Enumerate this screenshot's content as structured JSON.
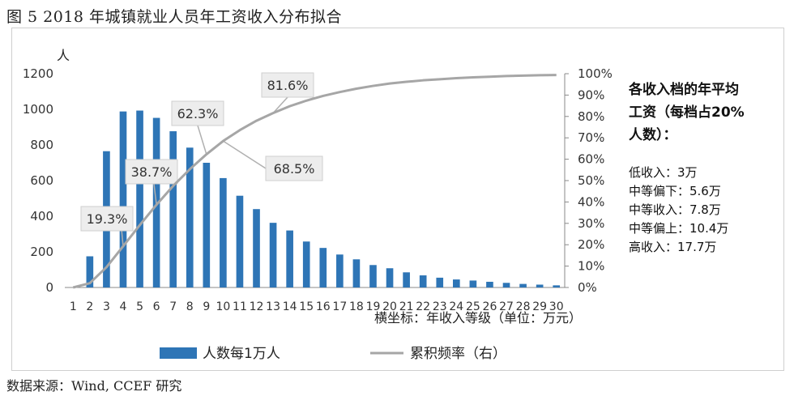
{
  "title": "图 5  2018 年城镇就业人员年工资收入分布拟合",
  "source": "数据来源：Wind, CCEF 研究",
  "colors": {
    "bar": "#2E75B6",
    "line": "#A6A6A6",
    "callout_fill": "#EDEDED",
    "callout_border": "#CFCFCF"
  },
  "chart_data": {
    "type": "bar+line",
    "x": [
      1,
      2,
      3,
      4,
      5,
      6,
      7,
      8,
      9,
      10,
      11,
      12,
      13,
      14,
      15,
      16,
      17,
      18,
      19,
      20,
      21,
      22,
      23,
      24,
      25,
      26,
      27,
      28,
      29,
      30
    ],
    "x_tick_labels": [
      "1",
      "2",
      "3",
      "4",
      "5",
      "6",
      "7",
      "8",
      "9",
      "10",
      "11",
      "12",
      "13",
      "14",
      "15",
      "16",
      "17",
      "18",
      "19",
      "20",
      "21",
      "22",
      "23",
      "24",
      "25",
      "26",
      "27",
      "28",
      "29",
      "30"
    ],
    "xlabel": "横坐标：年收入等级（单位：万元）",
    "ylabel_left": "人",
    "ylim_left": [
      0,
      1200
    ],
    "yticks_left": [
      "0",
      "200",
      "400",
      "600",
      "800",
      "1000",
      "1200"
    ],
    "ylim_right": [
      0,
      100
    ],
    "yticks_right": [
      "0%",
      "10%",
      "20%",
      "30%",
      "40%",
      "50%",
      "60%",
      "70%",
      "80%",
      "90%",
      "100%"
    ],
    "series": [
      {
        "name": "人数每1万人",
        "type": "bar",
        "axis": "left",
        "values": [
          0,
          175,
          765,
          988,
          993,
          952,
          877,
          785,
          700,
          614,
          515,
          440,
          363,
          320,
          258,
          222,
          185,
          158,
          126,
          108,
          85,
          68,
          55,
          45,
          39,
          32,
          26,
          20,
          16,
          12
        ]
      },
      {
        "name": "累积频率（右）",
        "type": "line",
        "axis": "right",
        "values": [
          0,
          2,
          9.5,
          19.3,
          29.2,
          38.7,
          47.5,
          55.3,
          62.3,
          68.5,
          73.6,
          78,
          81.6,
          84.8,
          87.4,
          89.6,
          91.4,
          93,
          94.3,
          95.4,
          96.2,
          96.9,
          97.4,
          97.9,
          98.3,
          98.6,
          98.9,
          99.1,
          99.3,
          99.4
        ]
      }
    ],
    "annotations": [
      {
        "label": "19.3%",
        "x": 4,
        "y": 19.3
      },
      {
        "label": "38.7%",
        "x": 6,
        "y": 38.7
      },
      {
        "label": "62.3%",
        "x": 9,
        "y": 62.3
      },
      {
        "label": "68.5%",
        "x": 10,
        "y": 68.5
      },
      {
        "label": "81.6%",
        "x": 13,
        "y": 81.6
      }
    ],
    "side_note": {
      "title_lines": [
        "各收入档的年平均",
        "工资（每档占20%",
        "人数）："
      ],
      "items": [
        "低收入：3万",
        "中等偏下：5.6万",
        "中等收入：7.8万",
        "中等偏上：10.4万",
        "高收入：17.7万"
      ]
    },
    "legend_position": "bottom",
    "grid": false
  }
}
